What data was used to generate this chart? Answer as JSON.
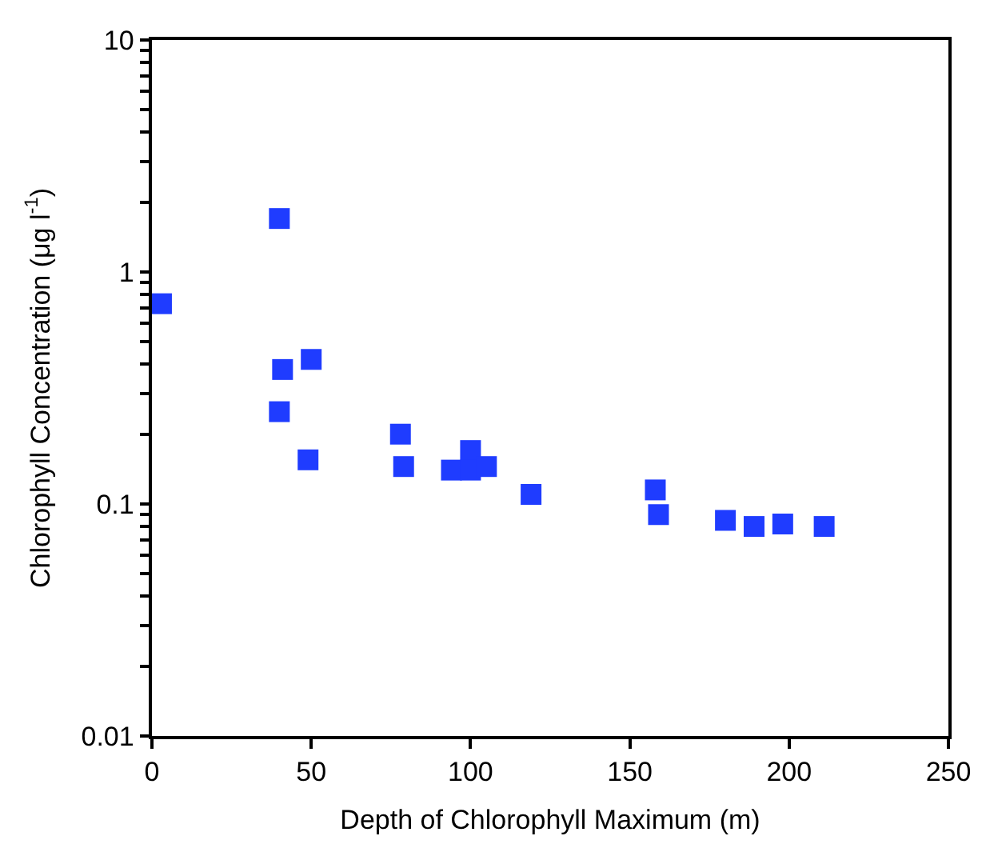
{
  "chart_data": {
    "type": "scatter",
    "xlabel": "Depth of Chlorophyll Maximum (m)",
    "ylabel": "Chlorophyll Concentration (μg l$^{-1}$)",
    "x": [
      3,
      40,
      41,
      50,
      40,
      49,
      78,
      79,
      94,
      100,
      100,
      105,
      119,
      158,
      159,
      180,
      189,
      198,
      209,
      211
    ],
    "series": [
      {
        "color": "#1f3cff",
        "values": [
          0.73,
          1.7,
          0.38,
          0.42,
          0.25,
          0.155,
          0.2,
          0.145,
          0.14,
          0.17,
          0.14,
          0.145,
          0.11,
          0.115,
          0.09,
          0.085,
          0.08,
          0.082,
          null,
          0.08
        ]
      }
    ],
    "log": "y",
    "marker": "square",
    "legend": false,
    "xlim": [
      0,
      250
    ],
    "xticks": [
      0,
      50,
      100,
      150,
      200,
      250
    ],
    "ylim": [
      0.01,
      10
    ],
    "yticks": [
      {
        "value": 0.01,
        "label": "0.01"
      },
      {
        "value": 0.02,
        "label": null
      },
      {
        "value": 0.03,
        "label": null
      },
      {
        "value": 0.04,
        "label": null
      },
      {
        "value": 0.05,
        "label": null
      },
      {
        "value": 0.06,
        "label": null
      },
      {
        "value": 0.07,
        "label": null
      },
      {
        "value": 0.08,
        "label": null
      },
      {
        "value": 0.09,
        "label": null
      },
      {
        "value": 0.1,
        "label": "0.1"
      },
      {
        "value": 0.2,
        "label": null
      },
      {
        "value": 0.3,
        "label": null
      },
      {
        "value": 0.4,
        "label": null
      },
      {
        "value": 0.5,
        "label": null
      },
      {
        "value": 0.6,
        "label": null
      },
      {
        "value": 0.7,
        "label": null
      },
      {
        "value": 0.8,
        "label": null
      },
      {
        "value": 0.9,
        "label": null
      },
      {
        "value": 1,
        "label": "1"
      },
      {
        "value": 2,
        "label": null
      },
      {
        "value": 3,
        "label": null
      },
      {
        "value": 4,
        "label": null
      },
      {
        "value": 5,
        "label": null
      },
      {
        "value": 6,
        "label": null
      },
      {
        "value": 7,
        "label": null
      },
      {
        "value": 8,
        "label": null
      },
      {
        "value": 9,
        "label": null
      },
      {
        "value": 10,
        "label": "10"
      }
    ]
  }
}
